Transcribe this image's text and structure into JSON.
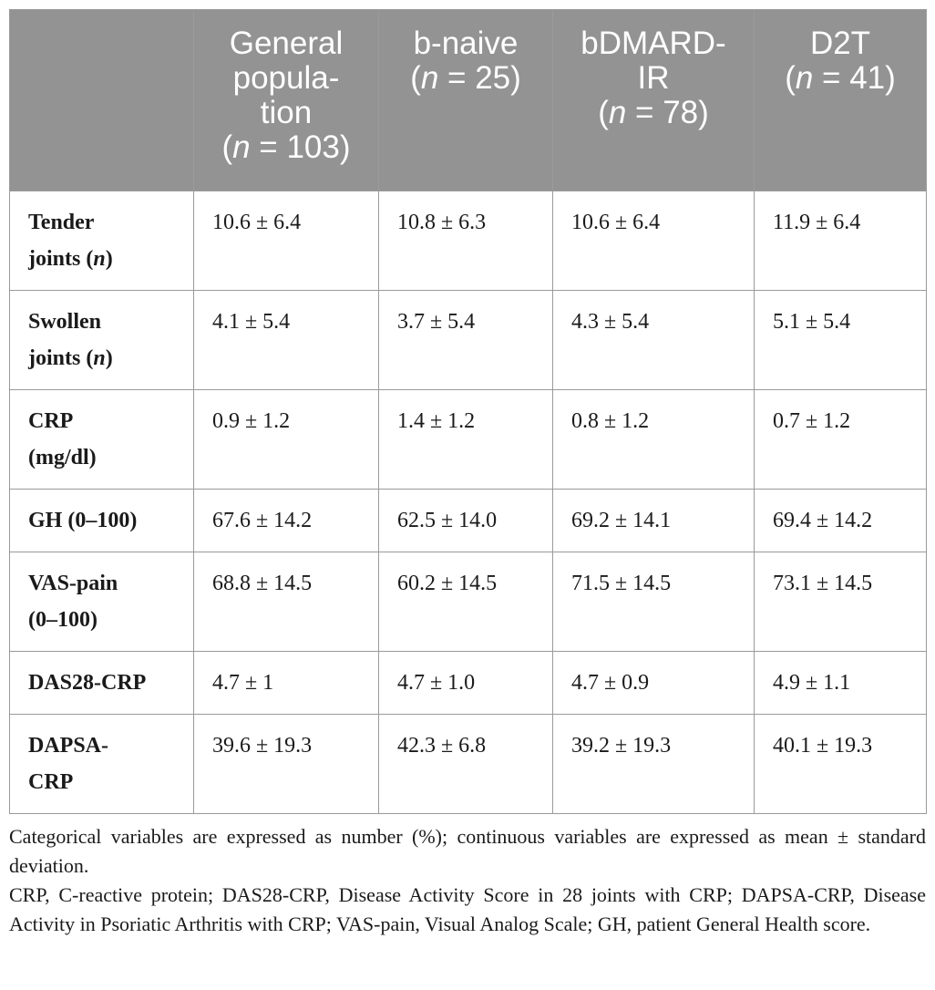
{
  "table": {
    "header": [
      {
        "lines": [
          ""
        ],
        "n": ""
      },
      {
        "lines": [
          "General",
          "popula-",
          "tion"
        ],
        "n": "(n = 103)"
      },
      {
        "lines": [
          "b-naive"
        ],
        "n": "(n = 25)"
      },
      {
        "lines": [
          "bDMARD-",
          "IR"
        ],
        "n": "(n = 78)"
      },
      {
        "lines": [
          "D2T"
        ],
        "n": "(n = 41)"
      }
    ],
    "rows": [
      {
        "label_lines": [
          "Tender",
          "joints (n)"
        ],
        "values": [
          "10.6 ± 6.4",
          "10.8 ± 6.3",
          "10.6 ± 6.4",
          "11.9 ± 6.4"
        ]
      },
      {
        "label_lines": [
          "Swollen",
          "joints (n)"
        ],
        "values": [
          "4.1 ± 5.4",
          "3.7 ± 5.4",
          "4.3 ± 5.4",
          "5.1 ± 5.4"
        ]
      },
      {
        "label_lines": [
          "CRP",
          "(mg/dl)"
        ],
        "values": [
          "0.9 ± 1.2",
          "1.4 ± 1.2",
          "0.8 ± 1.2",
          "0.7 ± 1.2"
        ]
      },
      {
        "label_lines": [
          "GH (0–100)"
        ],
        "values": [
          "67.6 ± 14.2",
          "62.5 ± 14.0",
          "69.2 ± 14.1",
          "69.4 ± 14.2"
        ]
      },
      {
        "label_lines": [
          "VAS-pain",
          "(0–100)"
        ],
        "values": [
          "68.8 ± 14.5",
          "60.2 ± 14.5",
          "71.5 ± 14.5",
          "73.1 ± 14.5"
        ]
      },
      {
        "label_lines": [
          "DAS28-CRP"
        ],
        "values": [
          "4.7 ± 1",
          "4.7 ± 1.0",
          "4.7 ± 0.9",
          "4.9 ± 1.1"
        ]
      },
      {
        "label_lines": [
          "DAPSA-",
          "CRP"
        ],
        "values": [
          "39.6 ± 19.3",
          "42.3 ± 6.8",
          "39.2 ± 19.3",
          "40.1 ± 19.3"
        ]
      }
    ]
  },
  "notes": [
    "Categorical variables are expressed as number (%); continuous variables are expressed as mean ± standard deviation.",
    "CRP, C-reactive protein; DAS28-CRP, Disease Activity Score in 28 joints with CRP; DAPSA-CRP, Disease Activity in Psoriatic Arthritis with CRP; VAS-pain, Visual Analog Scale; GH, patient General Health score."
  ],
  "colors": {
    "header_background": "#939393",
    "header_text": "#ffffff",
    "border": "#9a9a9a",
    "body_text": "#1a1a1a"
  }
}
